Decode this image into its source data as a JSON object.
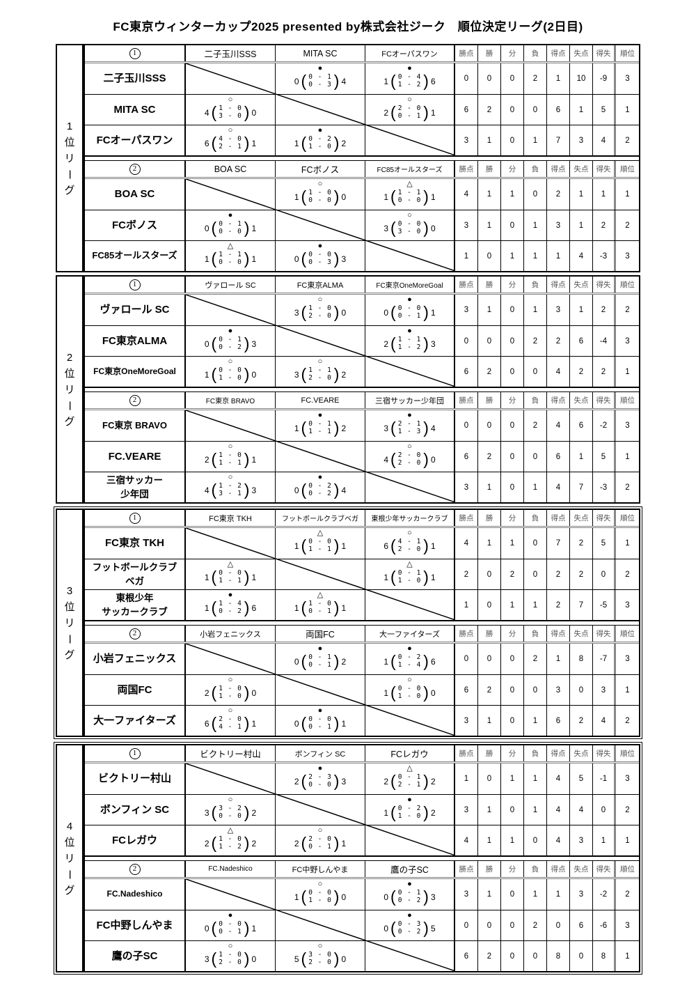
{
  "title": "FC東京ウィンターカップ2025 presented by株式会社ジーク　順位決定リーグ(2日目)",
  "stat_headers": [
    "勝点",
    "勝",
    "分",
    "負",
    "得点",
    "失点",
    "得失",
    "順位"
  ],
  "symbols": {
    "win": "○",
    "loss": "●",
    "draw": "△"
  },
  "leagues": [
    {
      "name": "1位リーグ",
      "groups": [
        {
          "label": "①",
          "team_headers": [
            "二子玉川SSS",
            "MITA SC",
            "FCオーパスワン"
          ],
          "rows": [
            {
              "team": "二子玉川SSS",
              "cells": [
                null,
                {
                  "r": "loss",
                  "left": "0",
                  "p1": "0 - 1",
                  "p2": "0 - 3",
                  "right": "4"
                },
                {
                  "r": "loss",
                  "left": "1",
                  "p1": "0 - 4",
                  "p2": "1 - 2",
                  "right": "6"
                }
              ],
              "stats": [
                "0",
                "0",
                "0",
                "2",
                "1",
                "10",
                "-9",
                "3"
              ]
            },
            {
              "team": "MITA SC",
              "cells": [
                {
                  "r": "win",
                  "left": "4",
                  "p1": "1 - 0",
                  "p2": "3 - 0",
                  "right": "0"
                },
                null,
                {
                  "r": "win",
                  "left": "2",
                  "p1": "2 - 0",
                  "p2": "0 - 1",
                  "right": "1"
                }
              ],
              "stats": [
                "6",
                "2",
                "0",
                "0",
                "6",
                "1",
                "5",
                "1"
              ]
            },
            {
              "team": "FCオーパスワン",
              "cells": [
                {
                  "r": "win",
                  "left": "6",
                  "p1": "4 - 0",
                  "p2": "2 - 1",
                  "right": "1"
                },
                {
                  "r": "loss",
                  "left": "1",
                  "p1": "0 - 2",
                  "p2": "1 - 0",
                  "right": "2"
                },
                null
              ],
              "stats": [
                "3",
                "1",
                "0",
                "1",
                "7",
                "3",
                "4",
                "2"
              ]
            }
          ]
        },
        {
          "label": "②",
          "team_headers": [
            "BOA SC",
            "FCボノス",
            "FC85オールスターズ"
          ],
          "rows": [
            {
              "team": "BOA SC",
              "cells": [
                null,
                {
                  "r": "win",
                  "left": "1",
                  "p1": "1 - 0",
                  "p2": "0 - 0",
                  "right": "0"
                },
                {
                  "r": "draw",
                  "left": "1",
                  "p1": "1 - 1",
                  "p2": "0 - 0",
                  "right": "1"
                }
              ],
              "stats": [
                "4",
                "1",
                "1",
                "0",
                "2",
                "1",
                "1",
                "1"
              ]
            },
            {
              "team": "FCボノス",
              "cells": [
                {
                  "r": "loss",
                  "left": "0",
                  "p1": "0 - 1",
                  "p2": "0 - 0",
                  "right": "1"
                },
                null,
                {
                  "r": "win",
                  "left": "3",
                  "p1": "0 - 0",
                  "p2": "3 - 0",
                  "right": "0"
                }
              ],
              "stats": [
                "3",
                "1",
                "0",
                "1",
                "3",
                "1",
                "2",
                "2"
              ]
            },
            {
              "team": "FC85オールスターズ",
              "cells": [
                {
                  "r": "draw",
                  "left": "1",
                  "p1": "1 - 1",
                  "p2": "0 - 0",
                  "right": "1"
                },
                {
                  "r": "loss",
                  "left": "0",
                  "p1": "0 - 0",
                  "p2": "0 - 3",
                  "right": "3"
                },
                null
              ],
              "stats": [
                "1",
                "0",
                "1",
                "1",
                "1",
                "4",
                "-3",
                "3"
              ]
            }
          ]
        }
      ]
    },
    {
      "name": "2位リーグ",
      "groups": [
        {
          "label": "①",
          "team_headers": [
            "ヴァロール SC",
            "FC東京ALMA",
            "FC東京OneMoreGoal"
          ],
          "rows": [
            {
              "team": "ヴァロール SC",
              "cells": [
                null,
                {
                  "r": "win",
                  "left": "3",
                  "p1": "1 - 0",
                  "p2": "2 - 0",
                  "right": "0"
                },
                {
                  "r": "loss",
                  "left": "0",
                  "p1": "0 - 0",
                  "p2": "0 - 1",
                  "right": "1"
                }
              ],
              "stats": [
                "3",
                "1",
                "0",
                "1",
                "3",
                "1",
                "2",
                "2"
              ]
            },
            {
              "team": "FC東京ALMA",
              "cells": [
                {
                  "r": "loss",
                  "left": "0",
                  "p1": "0 - 1",
                  "p2": "0 - 2",
                  "right": "3"
                },
                null,
                {
                  "r": "loss",
                  "left": "2",
                  "p1": "1 - 1",
                  "p2": "1 - 2",
                  "right": "3"
                }
              ],
              "stats": [
                "0",
                "0",
                "0",
                "2",
                "2",
                "6",
                "-4",
                "3"
              ]
            },
            {
              "team": "FC東京OneMoreGoal",
              "cells": [
                {
                  "r": "win",
                  "left": "1",
                  "p1": "0 - 0",
                  "p2": "1 - 0",
                  "right": "0"
                },
                {
                  "r": "win",
                  "left": "3",
                  "p1": "1 - 1",
                  "p2": "2 - 0",
                  "right": "2"
                },
                null
              ],
              "stats": [
                "6",
                "2",
                "0",
                "0",
                "4",
                "2",
                "2",
                "1"
              ]
            }
          ]
        },
        {
          "label": "②",
          "team_headers": [
            "FC東京 BRAVO",
            "FC.VEARE",
            "三宿サッカー少年団"
          ],
          "rows": [
            {
              "team": "FC東京 BRAVO",
              "cells": [
                null,
                {
                  "r": "loss",
                  "left": "1",
                  "p1": "0 - 1",
                  "p2": "1 - 1",
                  "right": "2"
                },
                {
                  "r": "loss",
                  "left": "3",
                  "p1": "2 - 1",
                  "p2": "1 - 3",
                  "right": "4"
                }
              ],
              "stats": [
                "0",
                "0",
                "0",
                "2",
                "4",
                "6",
                "-2",
                "3"
              ]
            },
            {
              "team": "FC.VEARE",
              "cells": [
                {
                  "r": "win",
                  "left": "2",
                  "p1": "1 - 0",
                  "p2": "1 - 1",
                  "right": "1"
                },
                null,
                {
                  "r": "win",
                  "left": "4",
                  "p1": "2 - 0",
                  "p2": "2 - 0",
                  "right": "0"
                }
              ],
              "stats": [
                "6",
                "2",
                "0",
                "0",
                "6",
                "1",
                "5",
                "1"
              ]
            },
            {
              "team": "三宿サッカー\n少年団",
              "cells": [
                {
                  "r": "win",
                  "left": "4",
                  "p1": "1 - 2",
                  "p2": "3 - 1",
                  "right": "3"
                },
                {
                  "r": "loss",
                  "left": "0",
                  "p1": "0 - 2",
                  "p2": "0 - 2",
                  "right": "4"
                },
                null
              ],
              "stats": [
                "3",
                "1",
                "0",
                "1",
                "4",
                "7",
                "-3",
                "2"
              ]
            }
          ]
        }
      ]
    },
    {
      "name": "3位リーグ",
      "groups": [
        {
          "label": "①",
          "team_headers": [
            "FC東京 TKH",
            "フットボールクラブベガ",
            "東根少年サッカークラブ"
          ],
          "rows": [
            {
              "team": "FC東京 TKH",
              "cells": [
                null,
                {
                  "r": "draw",
                  "left": "1",
                  "p1": "0 - 0",
                  "p2": "1 - 1",
                  "right": "1"
                },
                {
                  "r": "win",
                  "left": "6",
                  "p1": "4 - 1",
                  "p2": "2 - 0",
                  "right": "1"
                }
              ],
              "stats": [
                "4",
                "1",
                "1",
                "0",
                "7",
                "2",
                "5",
                "1"
              ]
            },
            {
              "team": "フットボールクラブ\nベガ",
              "cells": [
                {
                  "r": "draw",
                  "left": "1",
                  "p1": "0 - 0",
                  "p2": "1 - 1",
                  "right": "1"
                },
                null,
                {
                  "r": "draw",
                  "left": "1",
                  "p1": "0 - 1",
                  "p2": "1 - 0",
                  "right": "1"
                }
              ],
              "stats": [
                "2",
                "0",
                "2",
                "0",
                "2",
                "2",
                "0",
                "2"
              ]
            },
            {
              "team": "東根少年\nサッカークラブ",
              "cells": [
                {
                  "r": "loss",
                  "left": "1",
                  "p1": "1 - 4",
                  "p2": "0 - 2",
                  "right": "6"
                },
                {
                  "r": "draw",
                  "left": "1",
                  "p1": "1 - 0",
                  "p2": "0 - 1",
                  "right": "1"
                },
                null
              ],
              "stats": [
                "1",
                "0",
                "1",
                "1",
                "2",
                "7",
                "-5",
                "3"
              ]
            }
          ]
        },
        {
          "label": "②",
          "team_headers": [
            "小岩フェニックス",
            "両国FC",
            "大一ファイターズ"
          ],
          "rows": [
            {
              "team": "小岩フェニックス",
              "cells": [
                null,
                {
                  "r": "loss",
                  "left": "0",
                  "p1": "0 - 1",
                  "p2": "0 - 1",
                  "right": "2"
                },
                {
                  "r": "loss",
                  "left": "1",
                  "p1": "0 - 2",
                  "p2": "1 - 4",
                  "right": "6"
                }
              ],
              "stats": [
                "0",
                "0",
                "0",
                "2",
                "1",
                "8",
                "-7",
                "3"
              ]
            },
            {
              "team": "両国FC",
              "cells": [
                {
                  "r": "win",
                  "left": "2",
                  "p1": "1 - 0",
                  "p2": "1 - 0",
                  "right": "0"
                },
                null,
                {
                  "r": "win",
                  "left": "1",
                  "p1": "0 - 0",
                  "p2": "1 - 0",
                  "right": "0"
                }
              ],
              "stats": [
                "6",
                "2",
                "0",
                "0",
                "3",
                "0",
                "3",
                "1"
              ]
            },
            {
              "team": "大一ファイターズ",
              "cells": [
                {
                  "r": "win",
                  "left": "6",
                  "p1": "2 - 0",
                  "p2": "4 - 1",
                  "right": "1"
                },
                {
                  "r": "loss",
                  "left": "0",
                  "p1": "0 - 0",
                  "p2": "0 - 1",
                  "right": "1"
                },
                null
              ],
              "stats": [
                "3",
                "1",
                "0",
                "1",
                "6",
                "2",
                "4",
                "2"
              ]
            }
          ]
        }
      ]
    },
    {
      "name": "4位リーグ",
      "groups": [
        {
          "label": "①",
          "team_headers": [
            "ビクトリー村山",
            "ボンフィン SC",
            "FCレガウ"
          ],
          "rows": [
            {
              "team": "ビクトリー村山",
              "cells": [
                null,
                {
                  "r": "loss",
                  "left": "2",
                  "p1": "2 - 3",
                  "p2": "0 - 0",
                  "right": "3"
                },
                {
                  "r": "draw",
                  "left": "2",
                  "p1": "0 - 1",
                  "p2": "2 - 1",
                  "right": "2"
                }
              ],
              "stats": [
                "1",
                "0",
                "1",
                "1",
                "4",
                "5",
                "-1",
                "3"
              ]
            },
            {
              "team": "ボンフィン SC",
              "cells": [
                {
                  "r": "win",
                  "left": "3",
                  "p1": "3 - 2",
                  "p2": "0 - 0",
                  "right": "2"
                },
                null,
                {
                  "r": "loss",
                  "left": "1",
                  "p1": "0 - 2",
                  "p2": "1 - 0",
                  "right": "2"
                }
              ],
              "stats": [
                "3",
                "1",
                "0",
                "1",
                "4",
                "4",
                "0",
                "2"
              ]
            },
            {
              "team": "FCレガウ",
              "cells": [
                {
                  "r": "draw",
                  "left": "2",
                  "p1": "1 - 0",
                  "p2": "1 - 2",
                  "right": "2"
                },
                {
                  "r": "win",
                  "left": "2",
                  "p1": "2 - 0",
                  "p2": "0 - 1",
                  "right": "1"
                },
                null
              ],
              "stats": [
                "4",
                "1",
                "1",
                "0",
                "4",
                "3",
                "1",
                "1"
              ]
            }
          ]
        },
        {
          "label": "②",
          "team_headers": [
            "FC.Nadeshico",
            "FC中野しんやま",
            "鷹の子SC"
          ],
          "rows": [
            {
              "team": "FC.Nadeshico",
              "cells": [
                null,
                {
                  "r": "win",
                  "left": "1",
                  "p1": "0 - 0",
                  "p2": "1 - 0",
                  "right": "0"
                },
                {
                  "r": "loss",
                  "left": "0",
                  "p1": "0 - 1",
                  "p2": "0 - 2",
                  "right": "3"
                }
              ],
              "stats": [
                "3",
                "1",
                "0",
                "1",
                "1",
                "3",
                "-2",
                "2"
              ]
            },
            {
              "team": "FC中野しんやま",
              "cells": [
                {
                  "r": "loss",
                  "left": "0",
                  "p1": "0 - 0",
                  "p2": "0 - 1",
                  "right": "1"
                },
                null,
                {
                  "r": "loss",
                  "left": "0",
                  "p1": "0 - 3",
                  "p2": "0 - 2",
                  "right": "5"
                }
              ],
              "stats": [
                "0",
                "0",
                "0",
                "2",
                "0",
                "6",
                "-6",
                "3"
              ]
            },
            {
              "team": "鷹の子SC",
              "cells": [
                {
                  "r": "win",
                  "left": "3",
                  "p1": "1 - 0",
                  "p2": "2 - 0",
                  "right": "0"
                },
                {
                  "r": "win",
                  "left": "5",
                  "p1": "3 - 0",
                  "p2": "2 - 0",
                  "right": "0"
                },
                null
              ],
              "stats": [
                "6",
                "2",
                "0",
                "0",
                "8",
                "0",
                "8",
                "1"
              ]
            }
          ]
        }
      ]
    }
  ]
}
